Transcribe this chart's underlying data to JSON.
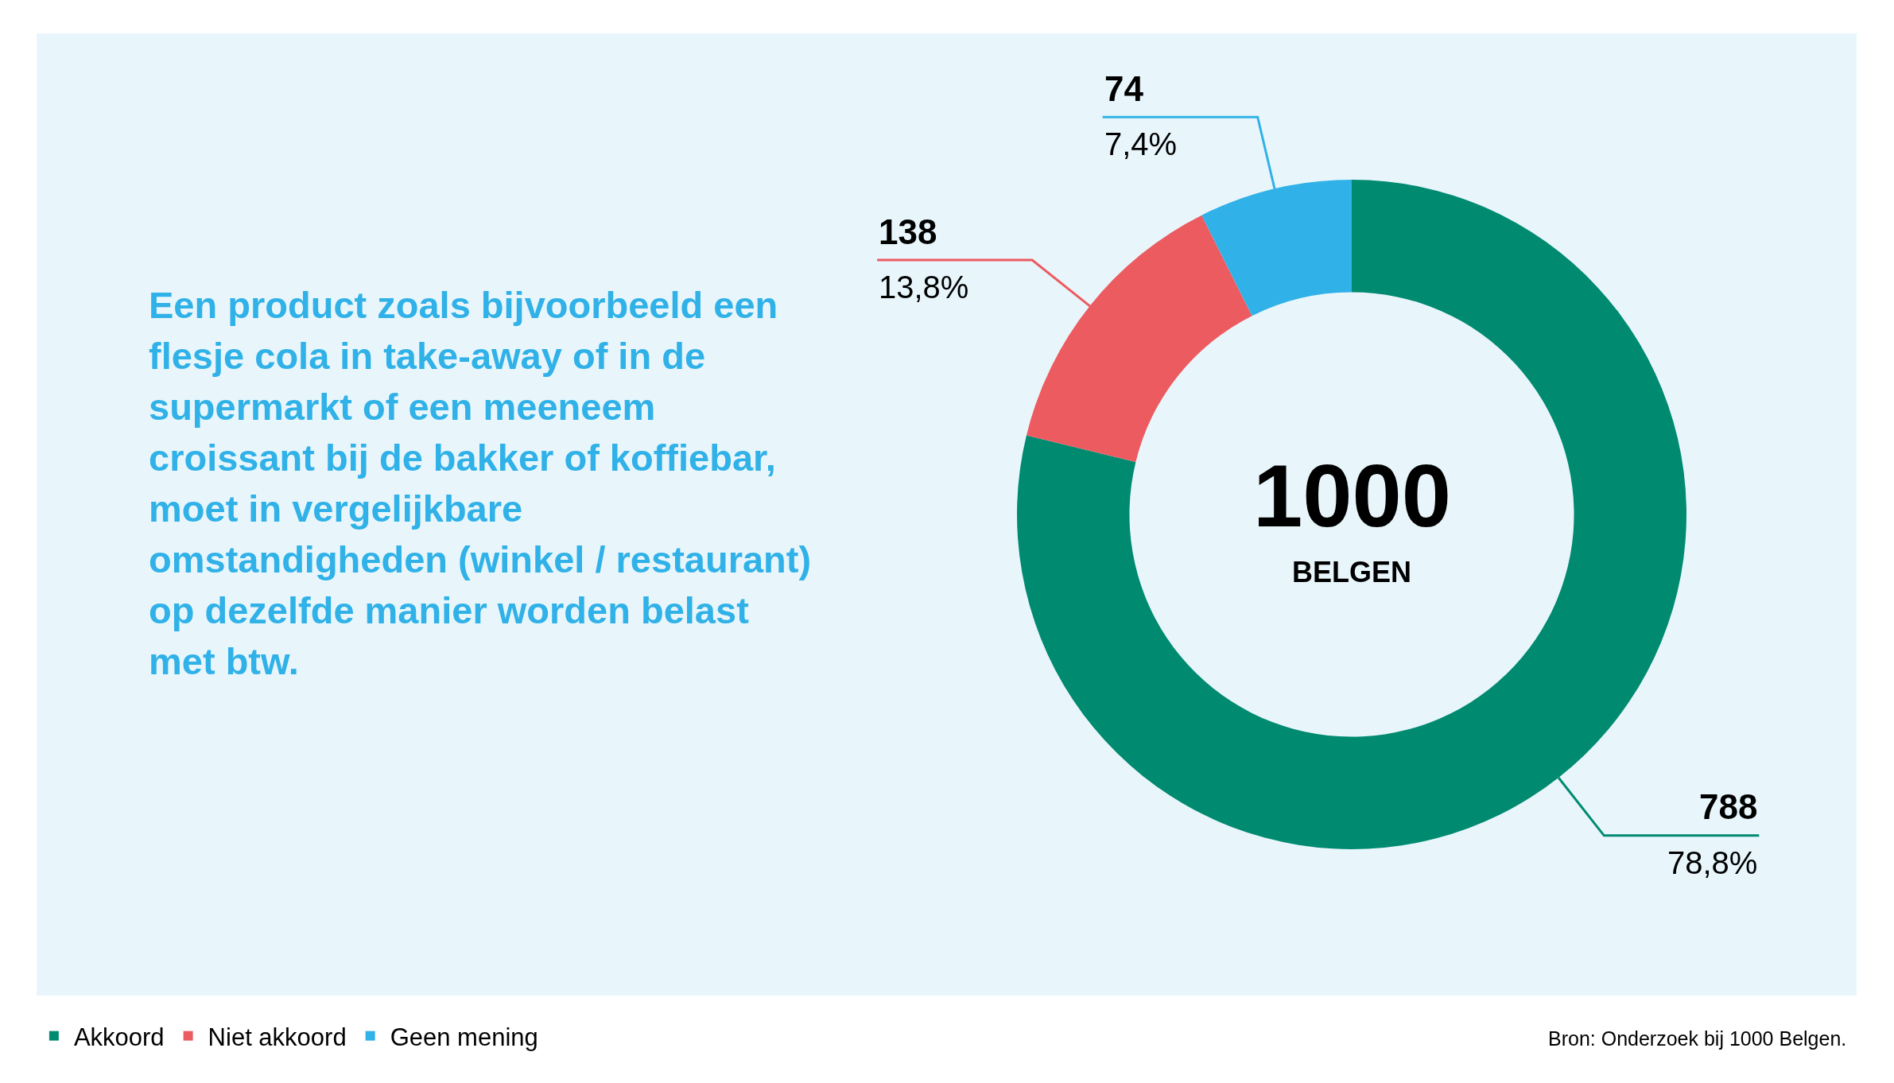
{
  "chart_data": {
    "type": "donut",
    "title": "Een product zoals bijvoorbeeld een flesje cola in take-away of in de supermarkt of een meeneem croissant bij de bakker of koffiebar, moet in vergelijkbare omstandigheden (winkel / restaurant) op dezelfde manier worden belast met btw.",
    "categories": [
      "Akkoord",
      "Niet akkoord",
      "Geen mening"
    ],
    "values": [
      788,
      138,
      74
    ],
    "colors": [
      "#008a70",
      "#ec5b60",
      "#30b1e7"
    ],
    "value_labels": [
      "788\n78,8%",
      "138\n13,8%",
      "74\n7,4%"
    ],
    "annotations": [
      "1000",
      "BELGEN",
      "Bron: Onderzoek bij 1000 Belgen."
    ],
    "legend": "bottom left"
  }
}
